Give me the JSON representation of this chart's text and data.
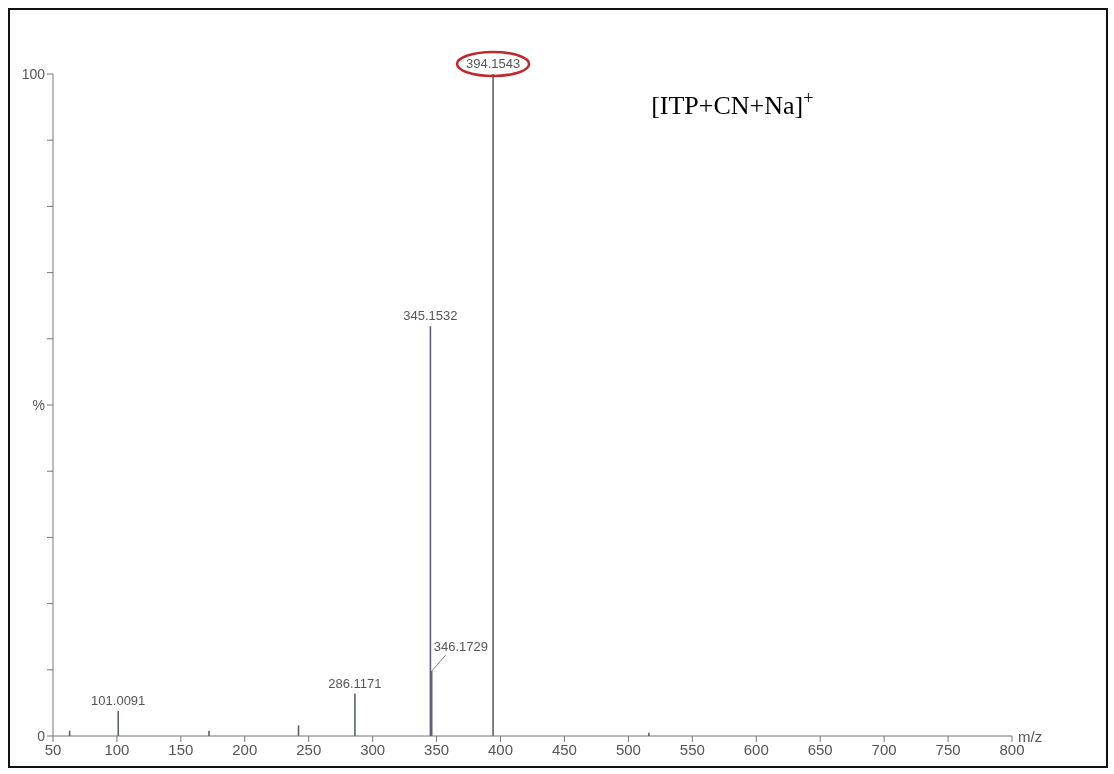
{
  "chart_data": {
    "type": "bar",
    "xlabel": "m/z",
    "x": [
      63,
      101.0091,
      172,
      242,
      286.1171,
      345.1532,
      346.1729,
      394.1543,
      516
    ],
    "values": [
      0.8,
      3.8,
      0.8,
      1.6,
      6.4,
      61.9,
      9.8,
      100,
      0.5
    ],
    "color": "#5d6272",
    "xlim": [
      50,
      800
    ],
    "xticks": [
      50,
      100,
      150,
      200,
      250,
      300,
      350,
      400,
      450,
      500,
      550,
      600,
      650,
      700,
      750,
      800
    ],
    "ylim": [
      0,
      100
    ],
    "yticks": [
      0,
      {
        "value": 10,
        "label": null
      },
      {
        "value": 20,
        "label": null
      },
      {
        "value": 30,
        "label": null
      },
      {
        "value": 40,
        "label": null
      },
      {
        "value": 50,
        "label": "%"
      },
      {
        "value": 60,
        "label": null
      },
      {
        "value": 70,
        "label": null
      },
      {
        "value": 80,
        "label": null
      },
      {
        "value": 90,
        "label": null
      },
      100
    ],
    "annotations": [
      "[ITP+CN+Na]$^{+}$",
      {
        "text": "101.0091",
        "x": 101.0091,
        "y": 3.8
      },
      {
        "text": "286.1171",
        "x": 286.1171,
        "y": 6.4
      },
      {
        "text": "345.1532",
        "x": 345.1532,
        "y": 61.9
      },
      {
        "text": "346.1729",
        "x": 346.1729,
        "y": 9.8
      },
      {
        "text": "394.1543",
        "x": 394.1543,
        "y": 100
      }
    ]
  }
}
